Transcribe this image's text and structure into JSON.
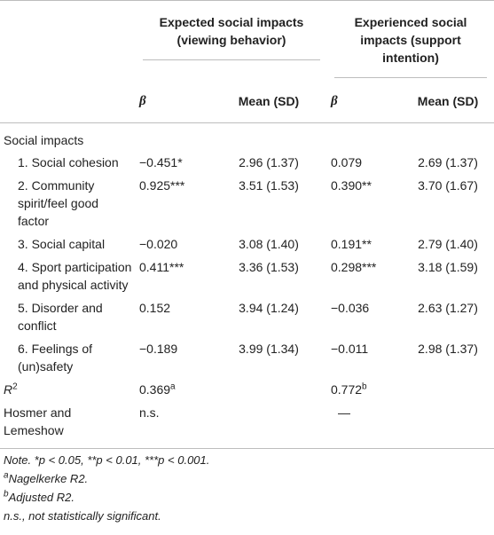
{
  "table": {
    "group_headers": [
      "Expected social impacts (viewing behavior)",
      "Experienced social impacts (support intention)"
    ],
    "sub_headers": [
      "β",
      "Mean (SD)",
      "β",
      "Mean (SD)"
    ],
    "section_label": "Social impacts",
    "rows": [
      {
        "label": "1. Social cohesion",
        "beta1": "−0.451*",
        "mean1": "2.96 (1.37)",
        "beta2": "0.079",
        "mean2": "2.69 (1.37)"
      },
      {
        "label": "2. Community spirit/feel good factor",
        "beta1": "0.925***",
        "mean1": "3.51 (1.53)",
        "beta2": "0.390**",
        "mean2": "3.70 (1.67)"
      },
      {
        "label": "3. Social capital",
        "beta1": "−0.020",
        "mean1": "3.08 (1.40)",
        "beta2": "0.191**",
        "mean2": "2.79 (1.40)"
      },
      {
        "label": "4. Sport participation and physical activity",
        "beta1": "0.411***",
        "mean1": "3.36 (1.53)",
        "beta2": "0.298***",
        "mean2": "3.18 (1.59)"
      },
      {
        "label": "5. Disorder and conflict",
        "beta1": "0.152",
        "mean1": "3.94 (1.24)",
        "beta2": "−0.036",
        "mean2": "2.63 (1.27)"
      },
      {
        "label": "6. Feelings of (un)safety",
        "beta1": "−0.189",
        "mean1": "3.99 (1.34)",
        "beta2": "−0.011",
        "mean2": "2.98 (1.37)"
      }
    ],
    "r2": {
      "label": "R",
      "label_sup": "2",
      "v1": "0.369",
      "v1_sup": "a",
      "v2": "0.772",
      "v2_sup": "b"
    },
    "hosmer": {
      "label": "Hosmer and Lemeshow",
      "v1": "n.s.",
      "v2": "—"
    }
  },
  "notes": {
    "line1": "Note. *p < 0.05, **p < 0.01, ***p < 0.001.",
    "line2_sup": "a",
    "line2": "Nagelkerke R2.",
    "line3_sup": "b",
    "line3": "Adjusted R2.",
    "line4": "n.s., not statistically significant."
  }
}
